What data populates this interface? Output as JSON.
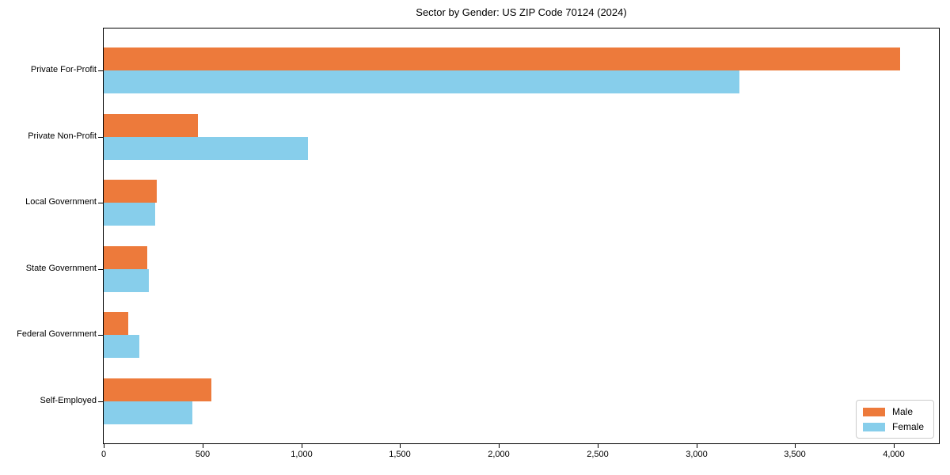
{
  "title": "Sector by Gender: US ZIP Code 70124 (2024)",
  "chart_data": {
    "type": "bar",
    "orientation": "horizontal",
    "title": "Sector by Gender: US ZIP Code 70124 (2024)",
    "categories": [
      "Private For-Profit",
      "Private Non-Profit",
      "Local Government",
      "State Government",
      "Federal Government",
      "Self-Employed"
    ],
    "series": [
      {
        "name": "Male",
        "color": "#ED7A3B",
        "values": [
          4030,
          475,
          270,
          220,
          125,
          545
        ]
      },
      {
        "name": "Female",
        "color": "#87CEEB",
        "values": [
          3220,
          1035,
          260,
          230,
          180,
          450
        ]
      }
    ],
    "xlabel": "",
    "ylabel": "",
    "xlim": [
      0,
      4228
    ],
    "xticks": [
      0,
      500,
      1000,
      1500,
      2000,
      2500,
      3000,
      3500,
      4000
    ],
    "xtick_labels": [
      "0",
      "500",
      "1,000",
      "1,500",
      "2,000",
      "2,500",
      "3,000",
      "3,500",
      "4,000"
    ],
    "grid": false,
    "legend_position": "lower right",
    "background_color": "#ffffff",
    "frame": true
  }
}
